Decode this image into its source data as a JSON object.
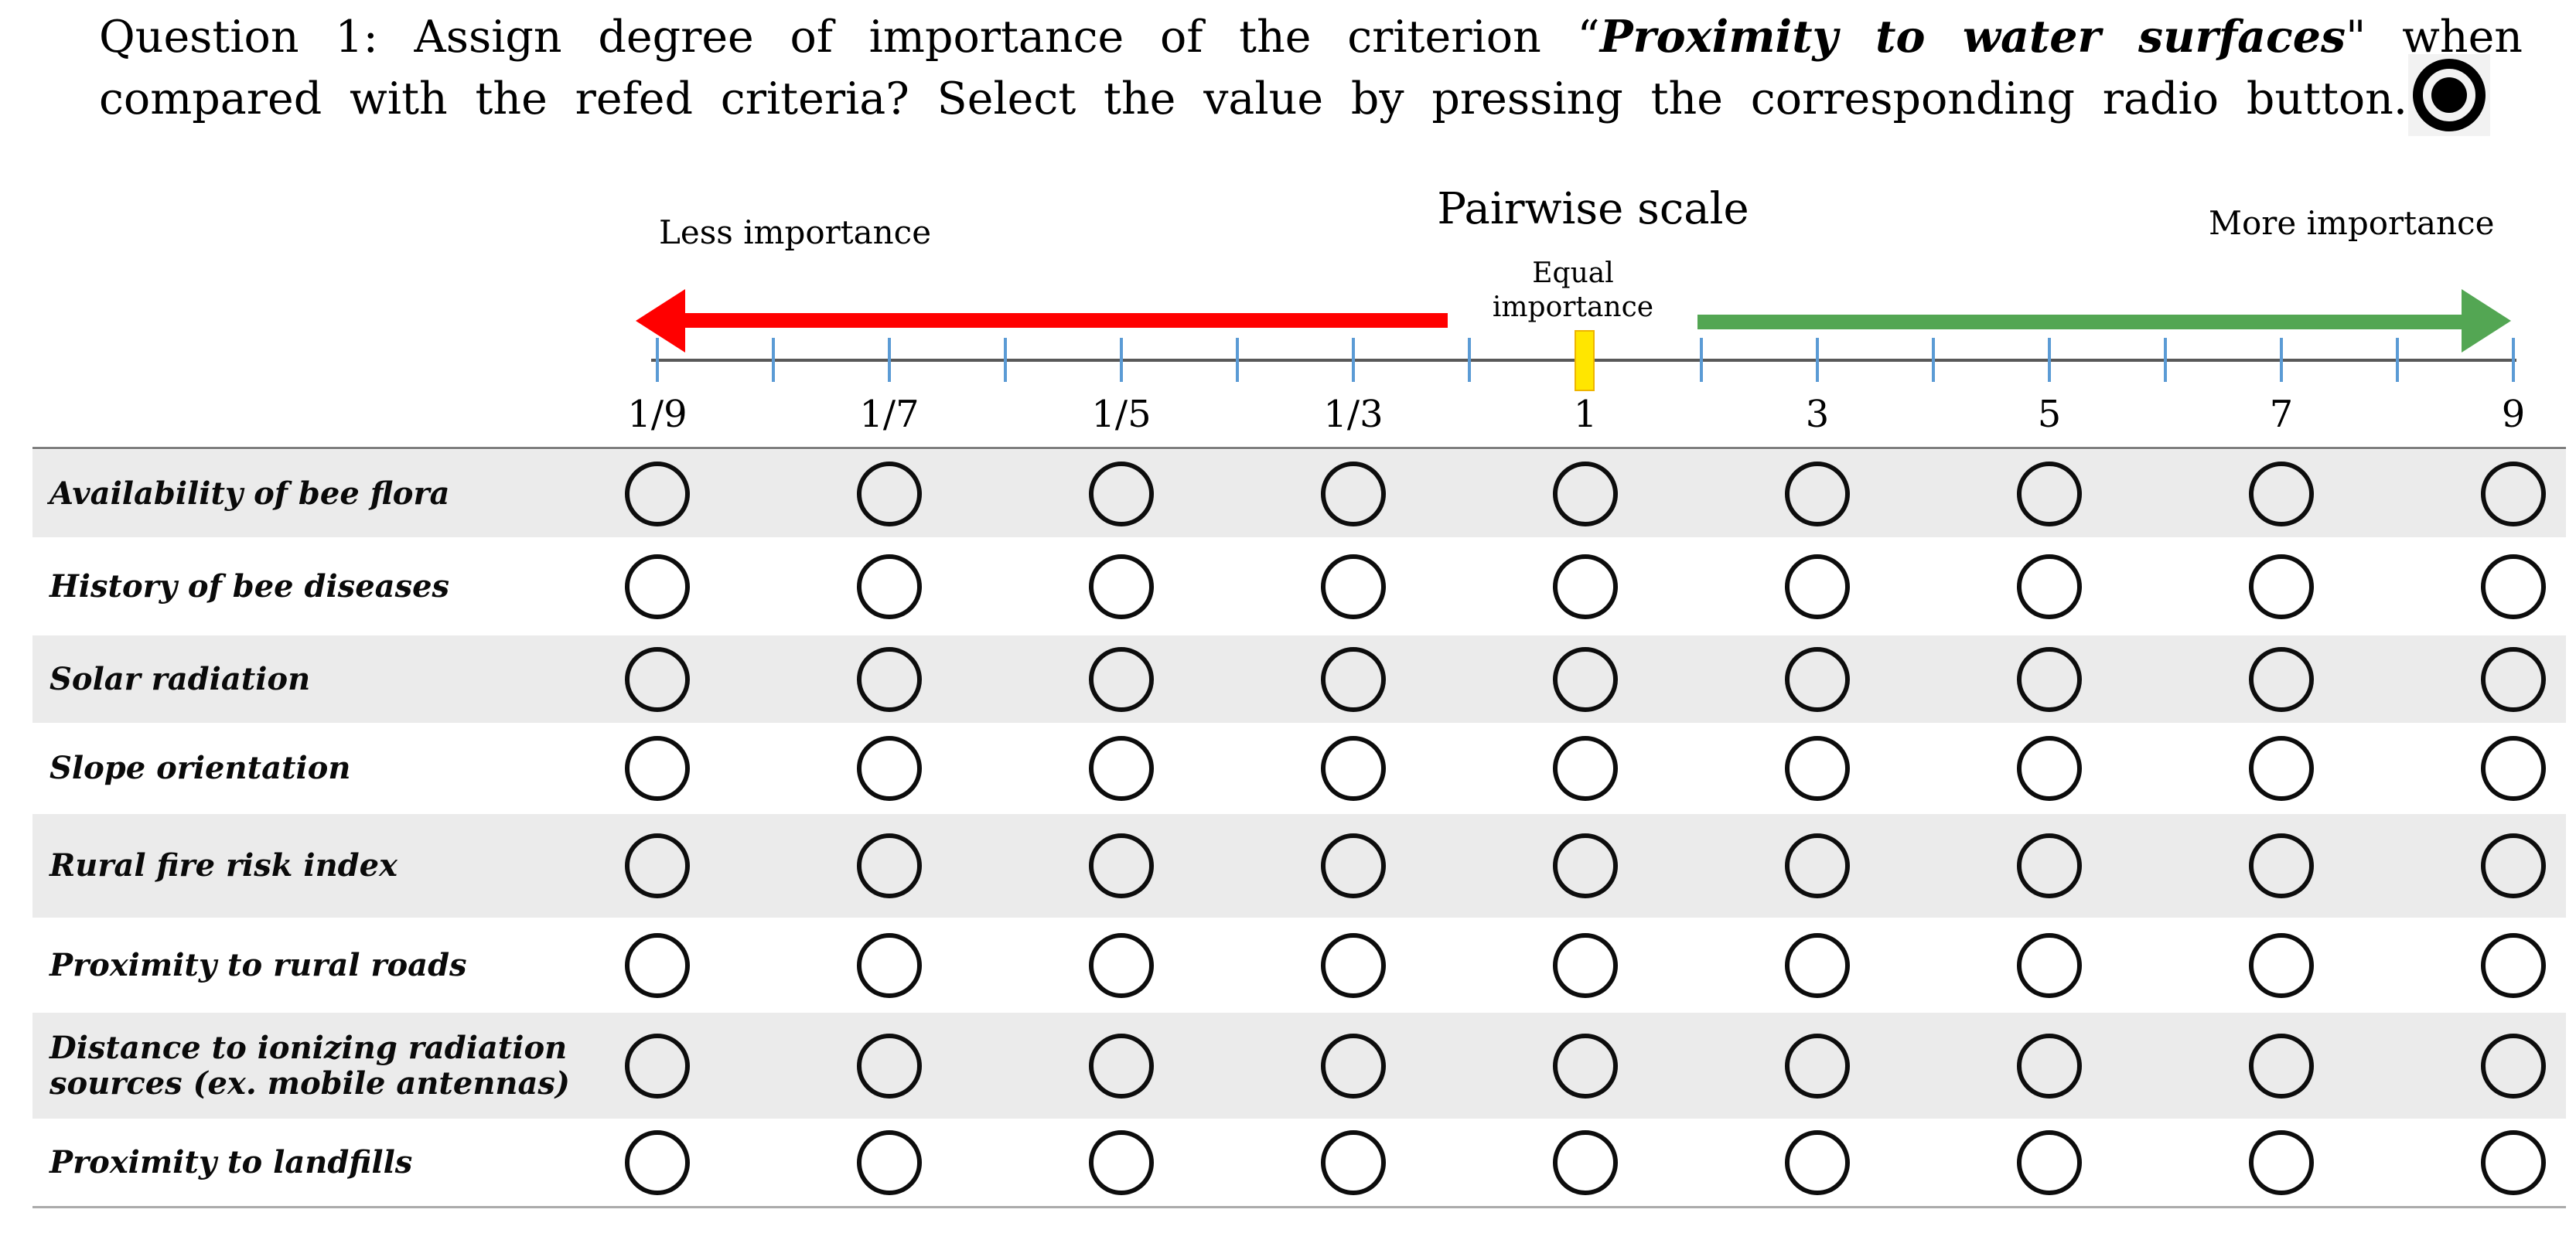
{
  "question": {
    "line1_pre": "Question 1: Assign degree of importance of the criterion “",
    "line1_emphasis": "Proximity to water surfaces",
    "line1_post": "\" when",
    "line2": "compared with the refed criteria? Select the value by pressing the corresponding radio button.",
    "radio_icon": "selected-radio-icon"
  },
  "scale": {
    "title": "Pairwise scale",
    "less_label": "Less importance",
    "more_label": "More importance",
    "equal_label_line1": "Equal",
    "equal_label_line2": "importance",
    "tick_values": [
      "1/9",
      "1/7",
      "1/5",
      "1/3",
      "1",
      "3",
      "5",
      "7",
      "9"
    ],
    "unlabeled_ticks_between_values": true,
    "colors": {
      "less_arrow": "#ff0000",
      "more_arrow": "#53a653",
      "equal_marker": "#ffe600",
      "tick": "#5b9bd5",
      "axis_line": "#595959"
    }
  },
  "table": {
    "criteria": [
      {
        "label": "Availability of bee flora",
        "shaded": true
      },
      {
        "label": "History of bee diseases",
        "shaded": false
      },
      {
        "label": "Solar radiation",
        "shaded": true
      },
      {
        "label": "Slope orientation",
        "shaded": false
      },
      {
        "label": "Rural fire risk index",
        "shaded": true
      },
      {
        "label": "Proximity to rural roads",
        "shaded": false
      },
      {
        "label": "Distance to ionizing radiation sources (ex. mobile antennas)",
        "shaded": true
      },
      {
        "label": "Proximity to landfills",
        "shaded": false
      }
    ],
    "options_per_row": [
      "1/9",
      "1/7",
      "1/5",
      "1/3",
      "1",
      "3",
      "5",
      "7",
      "9"
    ],
    "selected_value_per_row": [
      null,
      null,
      null,
      null,
      null,
      null,
      null,
      null
    ],
    "colors": {
      "shaded_row": "#ebebeb",
      "plain_row": "#ffffff"
    }
  }
}
